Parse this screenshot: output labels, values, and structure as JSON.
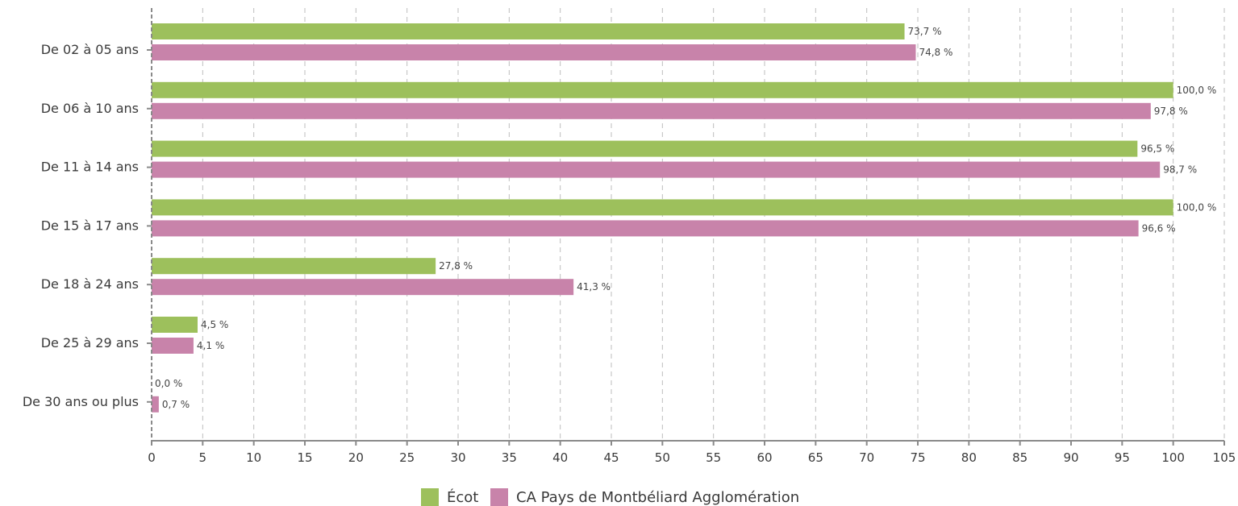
{
  "chart_data": {
    "type": "bar",
    "orientation": "horizontal",
    "categories": [
      "De 02 à 05 ans",
      "De 06 à 10 ans",
      "De 11 à 14 ans",
      "De 15 à 17 ans",
      "De 18 à 24 ans",
      "De 25 à 29 ans",
      "De 30 ans ou plus"
    ],
    "series": [
      {
        "name": "Écot",
        "color": "#9dc05c",
        "values": [
          73.7,
          100.0,
          96.5,
          100.0,
          27.8,
          4.5,
          0.0
        ],
        "labels": [
          "73,7 %",
          "100,0 %",
          "96,5 %",
          "100,0 %",
          "27,8 %",
          "4,5 %",
          "0,0 %"
        ]
      },
      {
        "name": "CA Pays de Montbéliard Agglomération",
        "color": "#c883aa",
        "values": [
          74.8,
          97.8,
          98.7,
          96.6,
          41.3,
          4.1,
          0.7
        ],
        "labels": [
          "74,8 %",
          "97,8 %",
          "98,7 %",
          "96,6 %",
          "41,3 %",
          "4,1 %",
          "0,7 %"
        ]
      }
    ],
    "xlim": [
      0,
      105
    ],
    "xticks": [
      0,
      5,
      10,
      15,
      20,
      25,
      30,
      35,
      40,
      45,
      50,
      55,
      60,
      65,
      70,
      75,
      80,
      85,
      90,
      95,
      100,
      105
    ],
    "grid": "vertical-dashed",
    "legend": "bottom-center",
    "title": "",
    "xlabel": "",
    "ylabel": ""
  }
}
